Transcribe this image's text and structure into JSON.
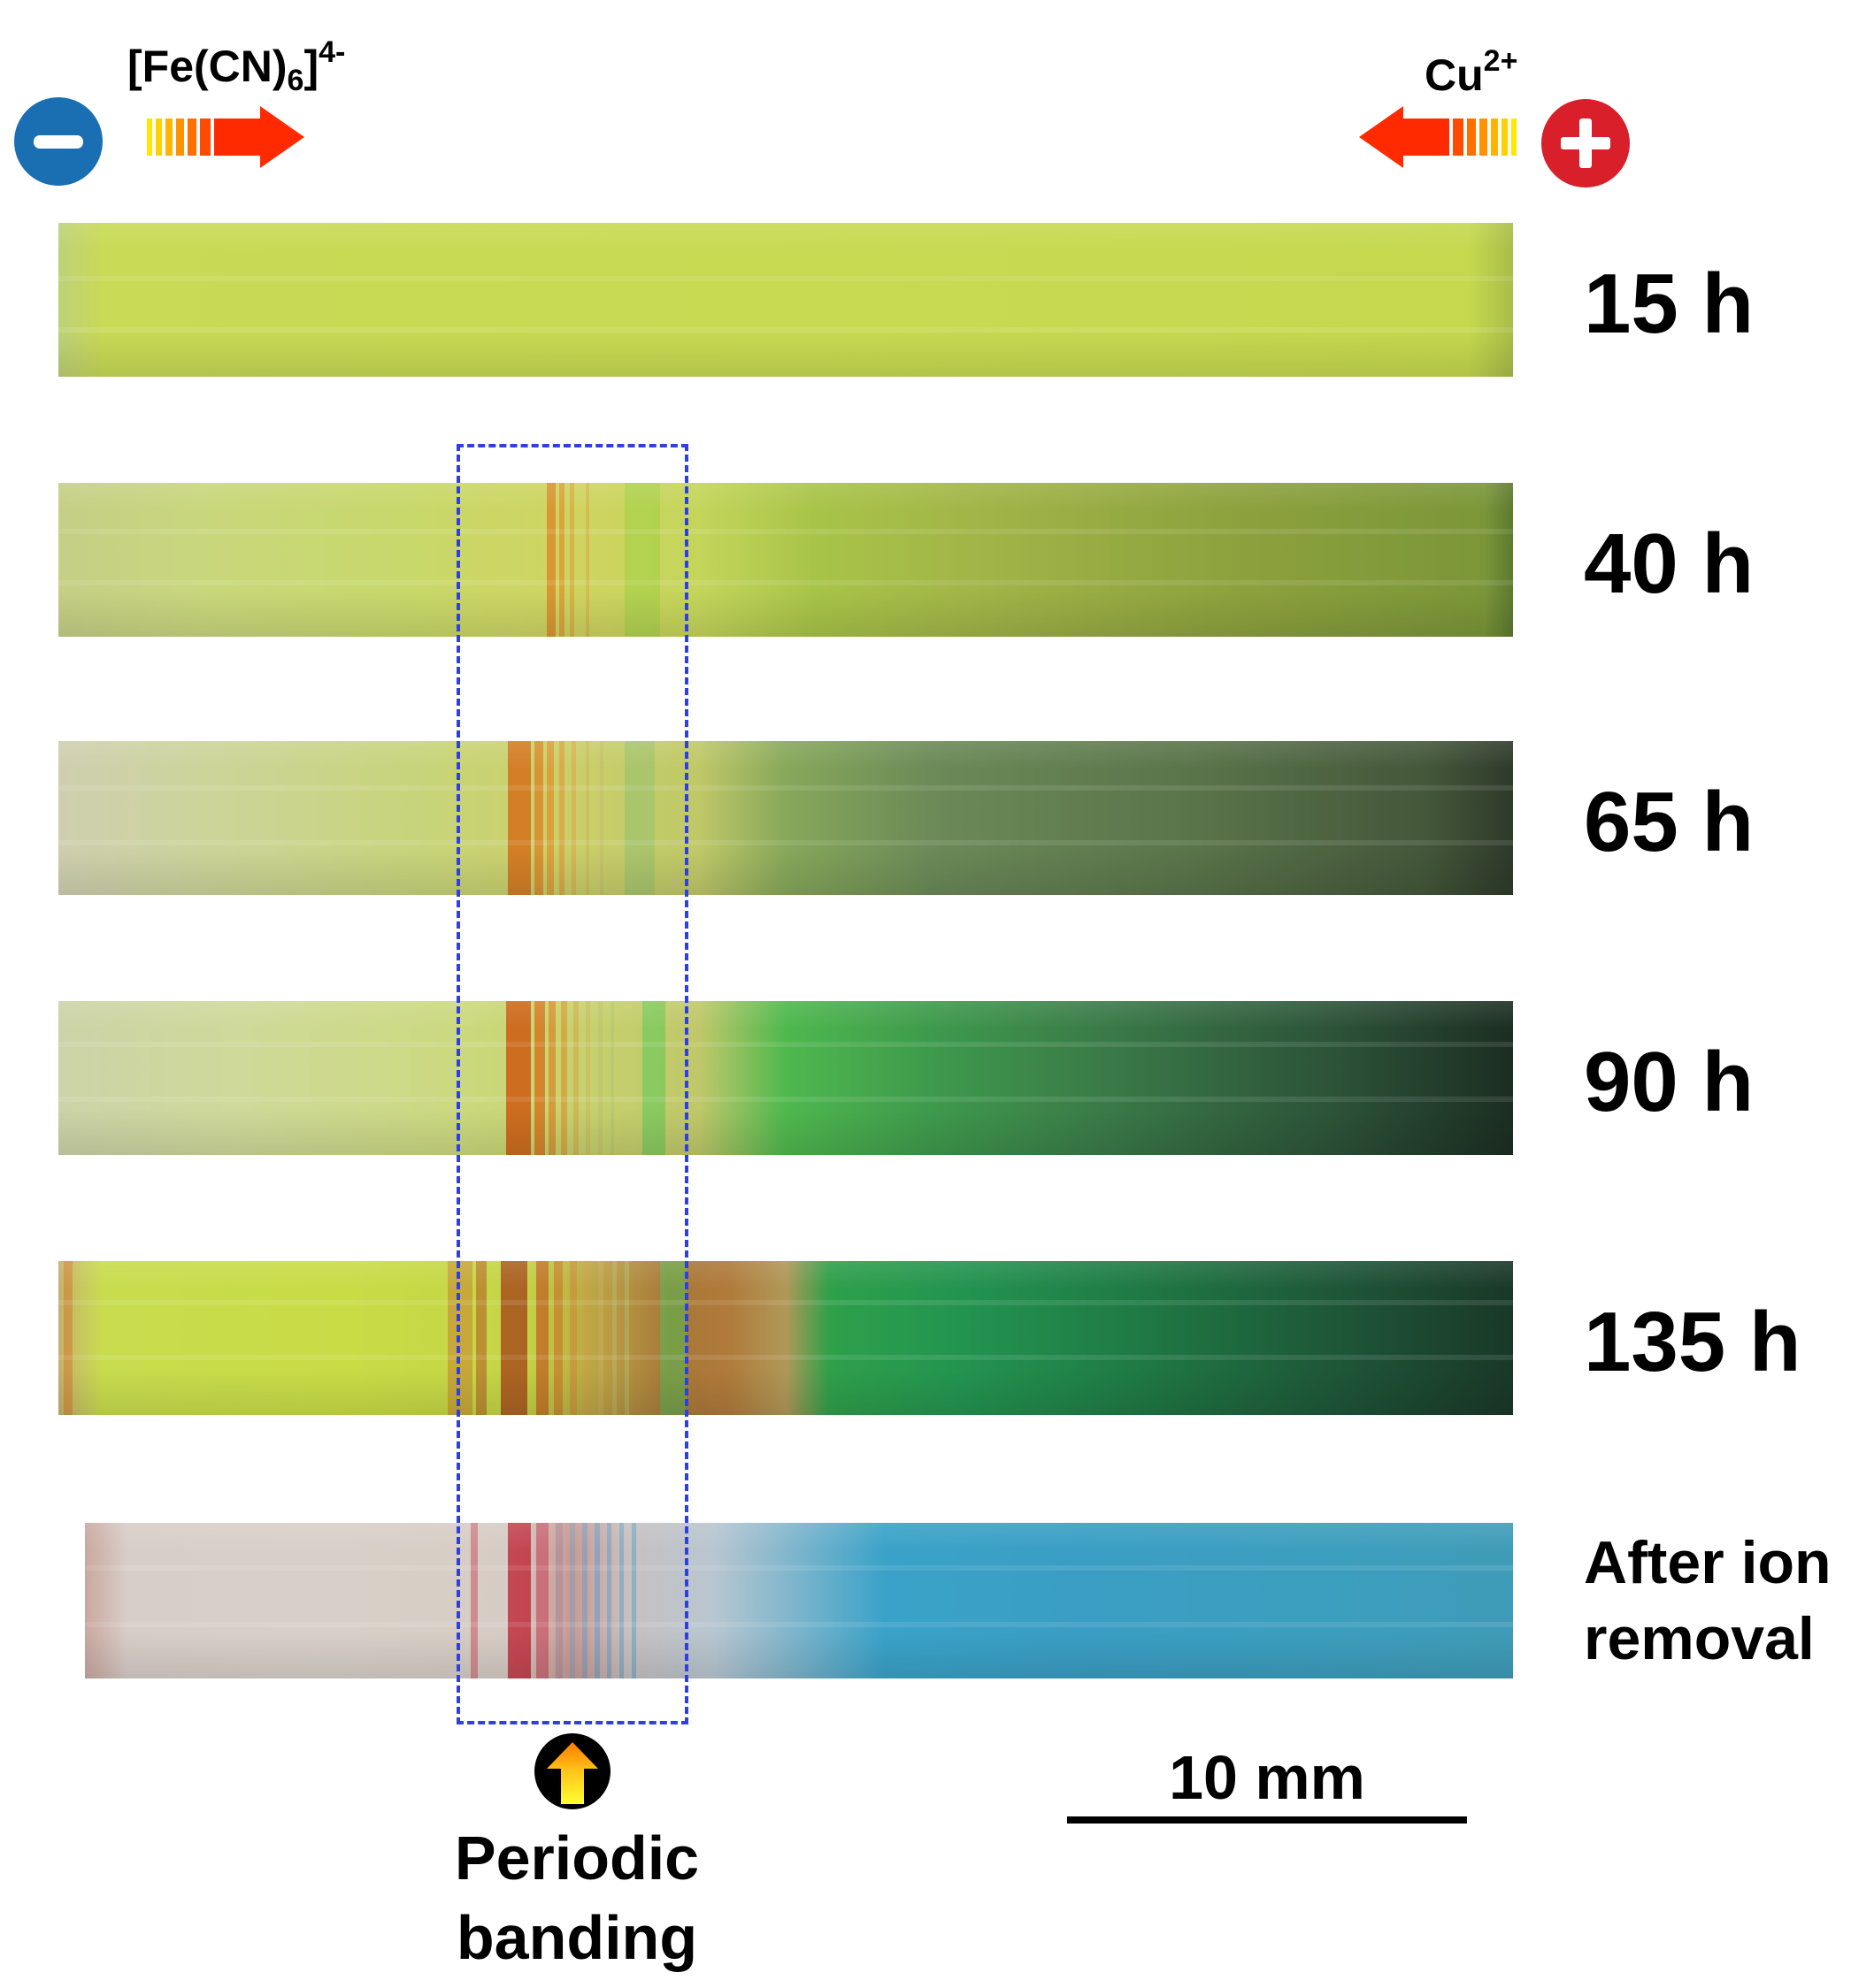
{
  "header": {
    "left_ion": "[Fe(CN)6]4-",
    "left_ion_base": "[Fe(CN)",
    "left_ion_sub": "6",
    "left_ion_close": "]",
    "left_ion_sup": "4-",
    "right_ion": "Cu2+",
    "right_ion_base": "Cu",
    "right_ion_sup": "2+",
    "negative_sign": "−",
    "positive_sign": "+",
    "negative_color": "#1a6fb3",
    "positive_color": "#d81f2a",
    "arrow_color": "#ff2a00"
  },
  "strips": [
    {
      "label": "15 h",
      "color_left": "#c9dc58",
      "color_right": "#c4d84e"
    },
    {
      "label": "40 h",
      "color_left": "#c6d47a",
      "color_right": "#7f9a3a"
    },
    {
      "label": "65 h",
      "color_left": "#cdcfae",
      "color_right": "#38452c"
    },
    {
      "label": "90 h",
      "color_left": "#cfd8a0",
      "color_right": "#223a28"
    },
    {
      "label": "135 h",
      "color_left": "#c8db4a",
      "color_right": "#1e3a2a"
    },
    {
      "label_line1": "After ion",
      "label_line2": "removal",
      "color_left": "#d6cdc6",
      "color_right": "#3a9dbf"
    }
  ],
  "annotation": {
    "highlight_box": "dashed",
    "highlight_color": "#2f3fe0",
    "callout_line1": "Periodic",
    "callout_line2": "banding",
    "callout_icon": "up-arrow-icon"
  },
  "scale_bar": {
    "label": "10 mm"
  }
}
